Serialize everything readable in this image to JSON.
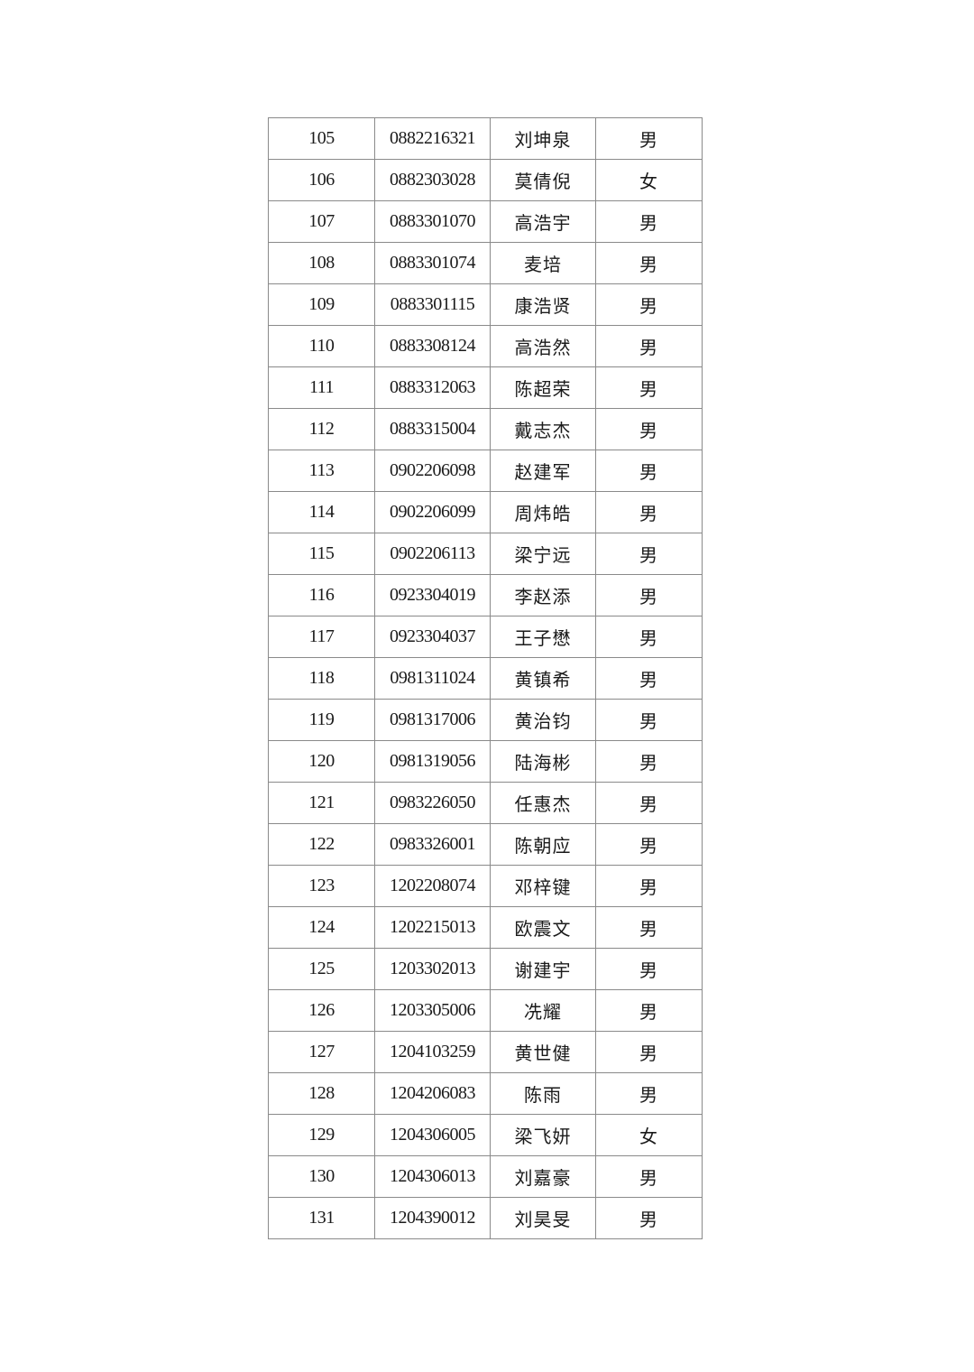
{
  "table": {
    "rows": [
      {
        "no": "105",
        "id": "0882216321",
        "name": "刘坤泉",
        "sex": "男"
      },
      {
        "no": "106",
        "id": "0882303028",
        "name": "莫倩倪",
        "sex": "女"
      },
      {
        "no": "107",
        "id": "0883301070",
        "name": "高浩宇",
        "sex": "男"
      },
      {
        "no": "108",
        "id": "0883301074",
        "name": "麦培",
        "sex": "男"
      },
      {
        "no": "109",
        "id": "0883301115",
        "name": "康浩贤",
        "sex": "男"
      },
      {
        "no": "110",
        "id": "0883308124",
        "name": "高浩然",
        "sex": "男"
      },
      {
        "no": "111",
        "id": "0883312063",
        "name": "陈超荣",
        "sex": "男"
      },
      {
        "no": "112",
        "id": "0883315004",
        "name": "戴志杰",
        "sex": "男"
      },
      {
        "no": "113",
        "id": "0902206098",
        "name": "赵建军",
        "sex": "男"
      },
      {
        "no": "114",
        "id": "0902206099",
        "name": "周炜皓",
        "sex": "男"
      },
      {
        "no": "115",
        "id": "0902206113",
        "name": "梁宁远",
        "sex": "男"
      },
      {
        "no": "116",
        "id": "0923304019",
        "name": "李赵添",
        "sex": "男"
      },
      {
        "no": "117",
        "id": "0923304037",
        "name": "王子懋",
        "sex": "男"
      },
      {
        "no": "118",
        "id": "0981311024",
        "name": "黄镇希",
        "sex": "男"
      },
      {
        "no": "119",
        "id": "0981317006",
        "name": "黄治钧",
        "sex": "男"
      },
      {
        "no": "120",
        "id": "0981319056",
        "name": "陆海彬",
        "sex": "男"
      },
      {
        "no": "121",
        "id": "0983226050",
        "name": "任惠杰",
        "sex": "男"
      },
      {
        "no": "122",
        "id": "0983326001",
        "name": "陈朝应",
        "sex": "男"
      },
      {
        "no": "123",
        "id": "1202208074",
        "name": "邓梓键",
        "sex": "男"
      },
      {
        "no": "124",
        "id": "1202215013",
        "name": "欧震文",
        "sex": "男"
      },
      {
        "no": "125",
        "id": "1203302013",
        "name": "谢建宇",
        "sex": "男"
      },
      {
        "no": "126",
        "id": "1203305006",
        "name": "冼耀",
        "sex": "男"
      },
      {
        "no": "127",
        "id": "1204103259",
        "name": "黄世健",
        "sex": "男"
      },
      {
        "no": "128",
        "id": "1204206083",
        "name": "陈雨",
        "sex": "男"
      },
      {
        "no": "129",
        "id": "1204306005",
        "name": "梁飞妍",
        "sex": "女"
      },
      {
        "no": "130",
        "id": "1204306013",
        "name": "刘嘉豪",
        "sex": "男"
      },
      {
        "no": "131",
        "id": "1204390012",
        "name": "刘昊旻",
        "sex": "男"
      }
    ]
  }
}
